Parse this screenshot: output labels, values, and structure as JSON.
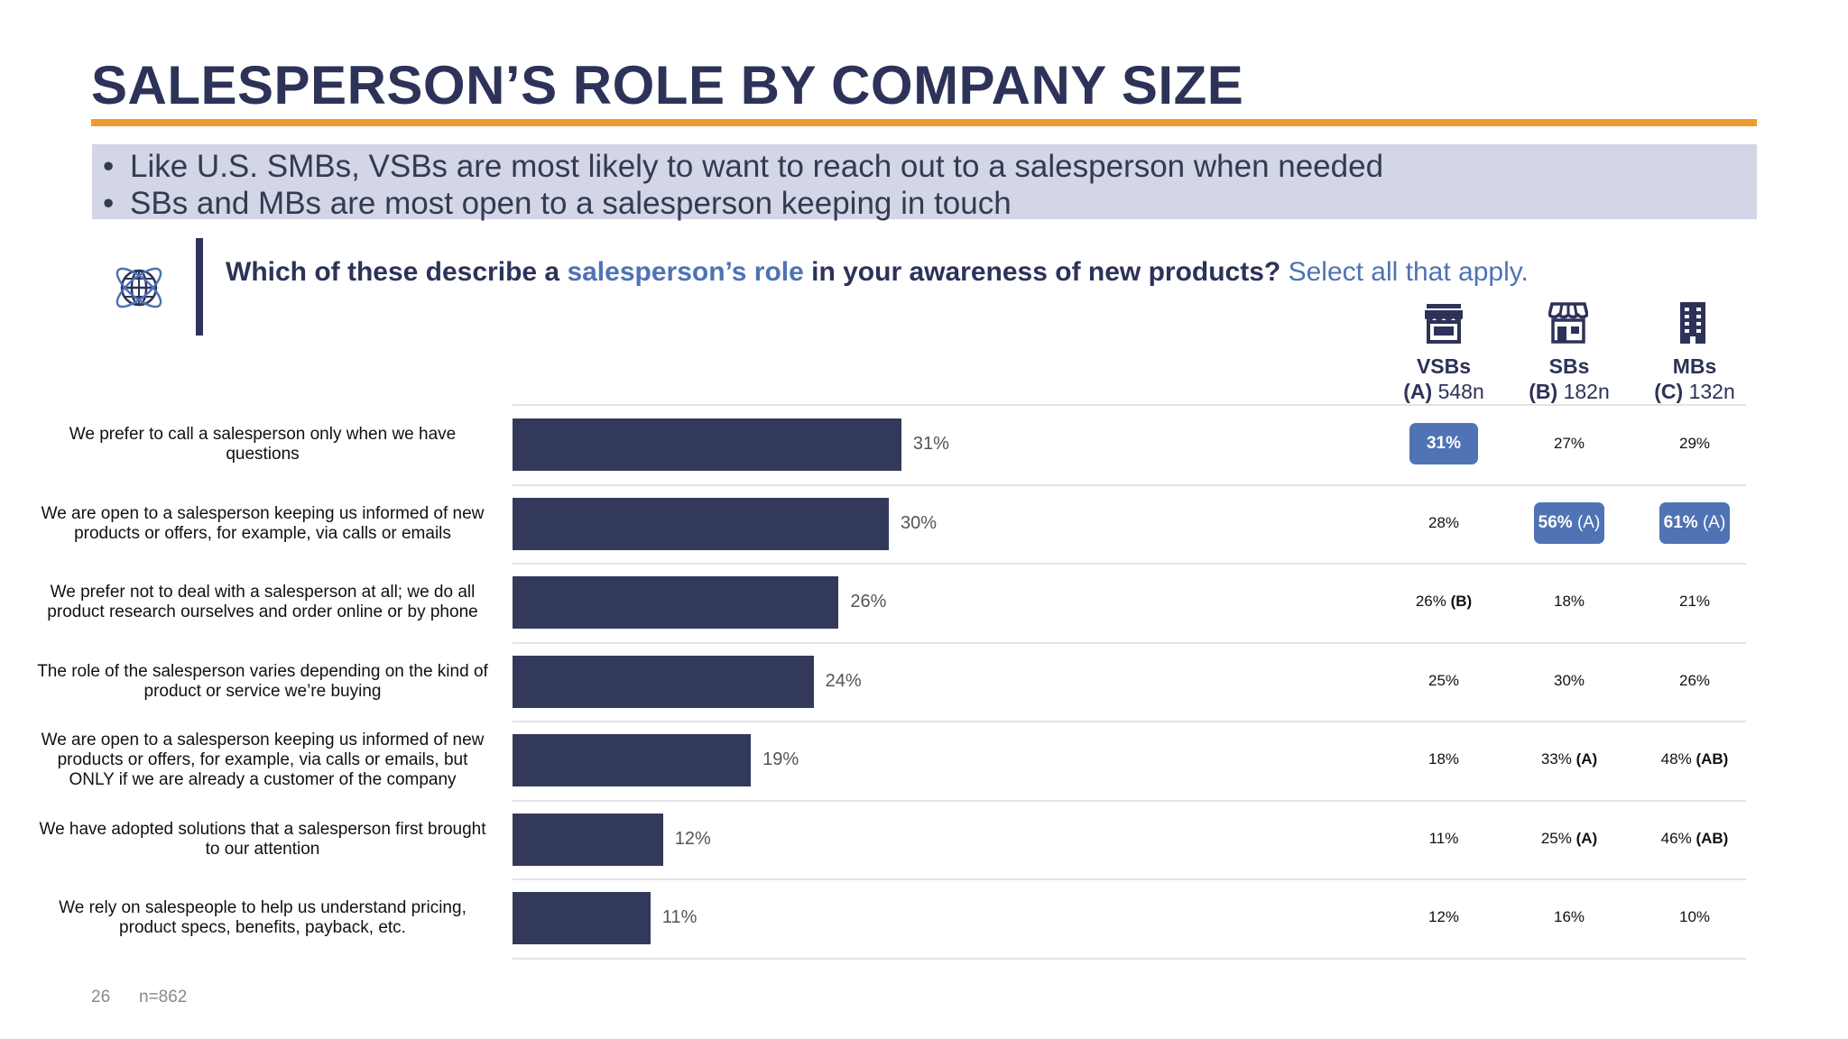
{
  "slide": {
    "title": "SALESPERSON’S ROLE BY COMPANY SIZE",
    "bullets": [
      "Like U.S. SMBs, VSBs are most likely to want to reach out to a salesperson when needed",
      "SBs and MBs are most open to a salesperson keeping in touch"
    ],
    "question": {
      "part1": "Which of these describe a ",
      "highlight": "salesperson’s role",
      "part2": " in your awareness of new products?",
      "instruction": " Select all that apply."
    },
    "icon": "globe-icon",
    "page_number": "26",
    "sample": "n=862"
  },
  "columns": [
    {
      "name": "VSBs",
      "letter": "(A)",
      "n": "548n",
      "icon": "storefront-icon"
    },
    {
      "name": "SBs",
      "letter": "(B)",
      "n": "182n",
      "icon": "shop-awning-icon"
    },
    {
      "name": "MBs",
      "letter": "(C)",
      "n": "132n",
      "icon": "office-building-icon"
    }
  ],
  "colors": {
    "bar": "#33395a",
    "accent": "#4f73b4",
    "rule": "#ec9a2e",
    "title": "#2d3258"
  },
  "chart_data": {
    "type": "bar",
    "orientation": "horizontal",
    "categories": [
      "We prefer to call a salesperson only when we have questions",
      "We are open to a salesperson keeping us informed of new products or offers, for example, via calls or emails",
      "We prefer not to deal with a salesperson at all; we do all product research ourselves and order online or by phone",
      "The role of the salesperson varies depending on the kind of product or service we’re buying",
      "We are open to a salesperson keeping us informed of new products or offers, for example, via calls or emails, but ONLY if we are already a customer of the company",
      "We have adopted solutions that a salesperson first brought to our attention",
      "We rely on salespeople to help us understand pricing, product specs, benefits, payback,  etc."
    ],
    "label_lines": [
      [
        "We prefer to call a salesperson only when we have",
        "questions"
      ],
      [
        "We are open to a salesperson keeping us informed of new",
        "products or offers, for example, via calls or emails"
      ],
      [
        "We prefer not to deal with a salesperson at all; we do all",
        "product research ourselves and order online or by phone"
      ],
      [
        "The role of the salesperson varies depending on the kind of",
        "product or service we’re buying"
      ],
      [
        "We are open to a salesperson keeping us informed of new",
        "products or offers, for example, via calls or emails, but",
        "ONLY if we are already a customer of the company"
      ],
      [
        "We have adopted solutions that a salesperson first brought",
        "to our attention"
      ],
      [
        "We rely on salespeople to help us understand pricing,",
        "product specs, benefits, payback,  etc."
      ]
    ],
    "values": [
      31,
      30,
      26,
      24,
      19,
      12,
      11
    ],
    "value_labels": [
      "31%",
      "30%",
      "26%",
      "24%",
      "19%",
      "12%",
      "11%"
    ],
    "xlim": [
      0,
      100
    ],
    "table": [
      [
        {
          "v": "31%",
          "sig": "",
          "hl": true
        },
        {
          "v": "27%",
          "sig": "",
          "hl": false
        },
        {
          "v": "29%",
          "sig": "",
          "hl": false
        }
      ],
      [
        {
          "v": "28%",
          "sig": "",
          "hl": false
        },
        {
          "v": "56%",
          "sig": "(A)",
          "hl": true
        },
        {
          "v": "61%",
          "sig": "(A)",
          "hl": true
        }
      ],
      [
        {
          "v": "26%",
          "sig": "(B)",
          "hl": false
        },
        {
          "v": "18%",
          "sig": "",
          "hl": false
        },
        {
          "v": "21%",
          "sig": "",
          "hl": false
        }
      ],
      [
        {
          "v": "25%",
          "sig": "",
          "hl": false
        },
        {
          "v": "30%",
          "sig": "",
          "hl": false
        },
        {
          "v": "26%",
          "sig": "",
          "hl": false
        }
      ],
      [
        {
          "v": "18%",
          "sig": "",
          "hl": false
        },
        {
          "v": "33%",
          "sig": "(A)",
          "hl": false
        },
        {
          "v": "48%",
          "sig": "(AB)",
          "hl": false
        }
      ],
      [
        {
          "v": "11%",
          "sig": "",
          "hl": false
        },
        {
          "v": "25%",
          "sig": "(A)",
          "hl": false
        },
        {
          "v": "46%",
          "sig": "(AB)",
          "hl": false
        }
      ],
      [
        {
          "v": "12%",
          "sig": "",
          "hl": false
        },
        {
          "v": "16%",
          "sig": "",
          "hl": false
        },
        {
          "v": "10%",
          "sig": "",
          "hl": false
        }
      ]
    ]
  }
}
